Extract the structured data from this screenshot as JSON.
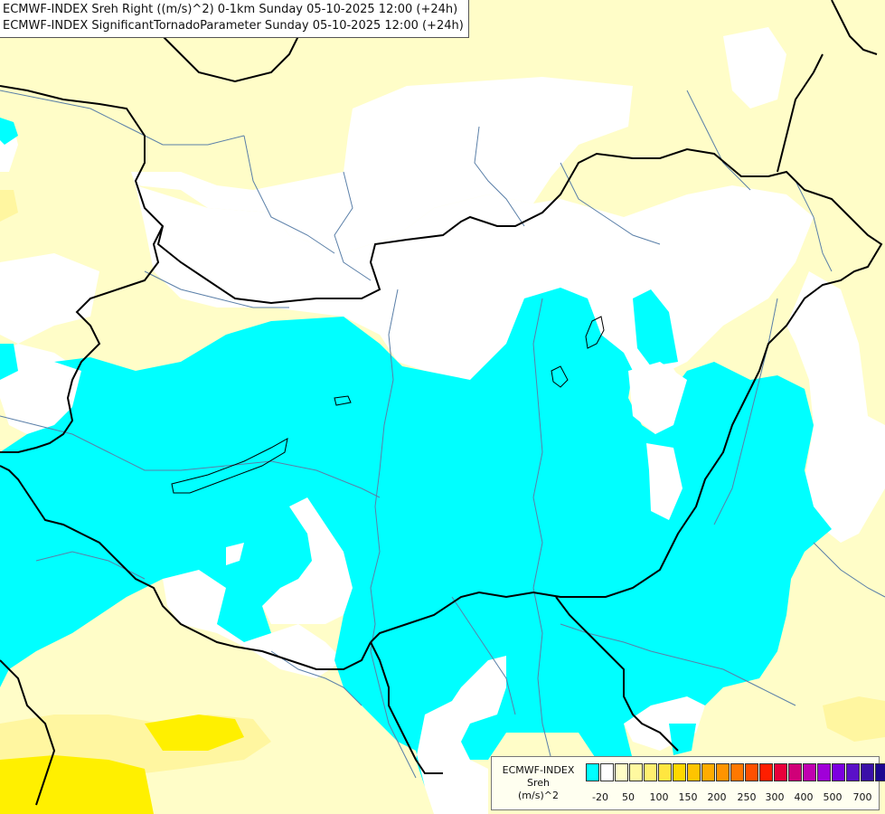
{
  "title": {
    "line1": "ECMWF-INDEX Sreh Right ((m/s)^2) 0-1km Sunday 05-10-2025 12:00 (+24h)",
    "line2": "ECMWF-INDEX SignificantTornadoParameter Sunday 05-10-2025 12:00 (+24h)"
  },
  "legend": {
    "line1": "ECMWF-INDEX",
    "line2": "Sreh",
    "line3": "(m/s)^2",
    "colors": [
      "#00ffff",
      "#ffffff",
      "#fffdc8",
      "#fff9a0",
      "#fff070",
      "#ffe640",
      "#ffd800",
      "#ffc400",
      "#ffac00",
      "#ff9400",
      "#ff7800",
      "#ff5000",
      "#ff1e00",
      "#e8003a",
      "#d00078",
      "#c000b0",
      "#a000d8",
      "#7c00e0",
      "#5a10c8",
      "#3a10a8",
      "#1c0890",
      "#0c0470"
    ],
    "ticks": [
      "-20",
      "50",
      "100",
      "150",
      "200",
      "250",
      "300",
      "400",
      "500",
      "700"
    ]
  },
  "map": {
    "colors": {
      "background": "#fffdc8",
      "low": "#ffffff",
      "negative": "#00ffff",
      "moderate": "#fff6a0",
      "high": "#fff000",
      "border": "#000000",
      "river": "#5a7fa8"
    }
  }
}
